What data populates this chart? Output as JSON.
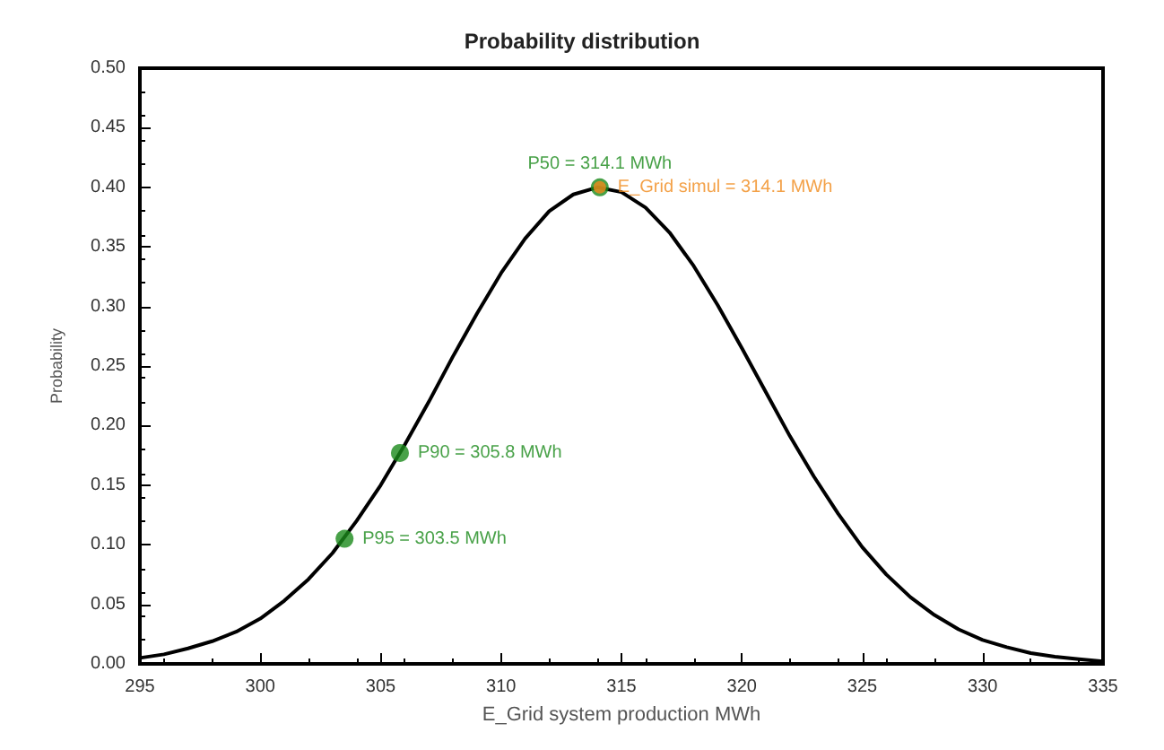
{
  "chart_data": {
    "type": "line",
    "title": "Probability distribution",
    "xlabel": "E_Grid system production MWh",
    "ylabel": "Probability",
    "xlim": [
      295,
      335
    ],
    "xticks": [
      295,
      300,
      305,
      310,
      315,
      320,
      325,
      330,
      335
    ],
    "ylim": [
      0,
      0.5
    ],
    "yticks": [
      {
        "value": 0,
        "label": "0.00"
      },
      {
        "value": 0.05,
        "label": "0.05"
      },
      {
        "value": 0.1,
        "label": "0.10"
      },
      {
        "value": 0.15,
        "label": "0.15"
      },
      {
        "value": 0.2,
        "label": "0.20"
      },
      {
        "value": 0.25,
        "label": "0.25"
      },
      {
        "value": 0.3,
        "label": "0.30"
      },
      {
        "value": 0.35,
        "label": "0.35"
      },
      {
        "value": 0.4,
        "label": "0.40"
      },
      {
        "value": 0.45,
        "label": "0.45"
      },
      {
        "value": 0.5,
        "label": "0.50"
      }
    ],
    "grid": false,
    "series": [
      {
        "color": "#000000",
        "marker": "none",
        "x": [
          295,
          296,
          297,
          298,
          299,
          300,
          301,
          302,
          303,
          304,
          305,
          306,
          307,
          308,
          309,
          310,
          311,
          312,
          313,
          314,
          315,
          316,
          317,
          318,
          319,
          320,
          321,
          322,
          323,
          324,
          325,
          326,
          327,
          328,
          329,
          330,
          331,
          332,
          333,
          334,
          335
        ],
        "values": [
          0.005,
          0.008,
          0.013,
          0.019,
          0.027,
          0.038,
          0.053,
          0.071,
          0.093,
          0.12,
          0.15,
          0.184,
          0.22,
          0.258,
          0.294,
          0.328,
          0.357,
          0.38,
          0.394,
          0.4,
          0.396,
          0.383,
          0.362,
          0.334,
          0.301,
          0.265,
          0.228,
          0.191,
          0.157,
          0.126,
          0.098,
          0.075,
          0.056,
          0.041,
          0.029,
          0.02,
          0.014,
          0.009,
          0.006,
          0.004,
          0.002
        ]
      },
      {
        "type": "scatter",
        "color": "#1a8a1a",
        "marker": "circle",
        "x": [
          303.5,
          305.8,
          314.1
        ],
        "values": [
          0.105,
          0.177,
          0.4
        ]
      },
      {
        "type": "scatter",
        "color": "#f08a1a",
        "marker": "circle",
        "x": [
          314.1
        ],
        "values": [
          0.4
        ]
      }
    ],
    "annotations": [
      {
        "text": "P95 = 303.5 MWh",
        "x": 303.5,
        "y": 0.105
      },
      {
        "text": "P90 = 305.8 MWh",
        "x": 305.8,
        "y": 0.177
      },
      {
        "text": "P50 = 314.1 MWh",
        "x": 314.1,
        "y": 0.4
      },
      {
        "text": "E_Grid simul = 314.1 MWh",
        "x": 314.1,
        "y": 0.4
      }
    ]
  }
}
